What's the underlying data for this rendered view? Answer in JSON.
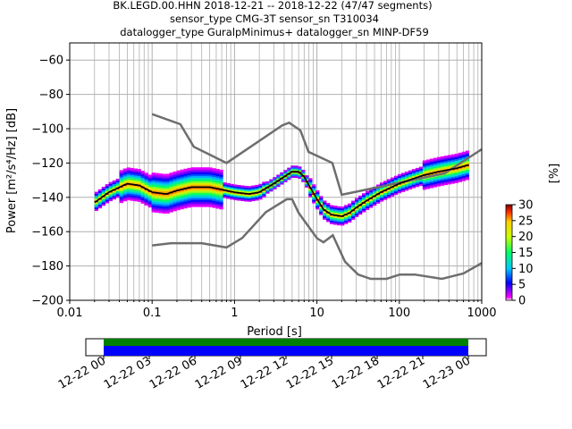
{
  "header": {
    "line1": "BK.LEGD.00.HHN   2018-12-21 -- 2018-12-22  (47/47 segments)",
    "line2": "sensor_type CMG-3T sensor_sn T310034",
    "line3": "datalogger_type GuralpMinimus+ datalogger_sn MINP-DF59"
  },
  "chart_data": {
    "type": "heatmap",
    "xlabel": "Period [s]",
    "ylabel": "Power [m²/s⁴/Hz] [dB]",
    "xscale": "log",
    "xlim": [
      0.01,
      1000
    ],
    "ylim": [
      -200,
      -50
    ],
    "grid": true,
    "x_tick_labels": [
      "0.01",
      "0.1",
      "1",
      "10",
      "100",
      "1000"
    ],
    "x_tick_values": [
      0.01,
      0.1,
      1,
      10,
      100,
      1000
    ],
    "y_tick_labels": [
      "−60",
      "−80",
      "−100",
      "−120",
      "−140",
      "−160",
      "−180",
      "−200"
    ],
    "y_tick_values": [
      -60,
      -80,
      -100,
      -120,
      -140,
      -160,
      -180,
      -200
    ],
    "colorbar": {
      "label": "[%]",
      "ticks": [
        "0",
        "5",
        "10",
        "15",
        "20",
        "25",
        "30"
      ],
      "tick_values": [
        0,
        5,
        10,
        15,
        20,
        25,
        30
      ],
      "range": [
        0,
        30
      ]
    },
    "mode_curve": {
      "period": [
        0.02,
        0.03,
        0.05,
        0.07,
        0.1,
        0.15,
        0.2,
        0.3,
        0.5,
        1,
        1.5,
        2,
        3,
        4,
        5,
        6,
        7,
        8,
        10,
        12,
        15,
        20,
        25,
        30,
        40,
        60,
        100,
        150,
        200,
        300,
        500,
        700
      ],
      "power": [
        -143,
        -137,
        -132,
        -133,
        -137,
        -138,
        -136,
        -134,
        -134,
        -137,
        -138,
        -137,
        -132,
        -128,
        -125,
        -125,
        -128,
        -133,
        -141,
        -147,
        -150,
        -151,
        -149,
        -146,
        -142,
        -137,
        -132,
        -129,
        -127,
        -125,
        -123,
        -121
      ]
    },
    "nlnm": {
      "period": [
        0.1,
        0.17,
        0.4,
        0.8,
        1.24,
        2.4,
        4.3,
        5.0,
        6.0,
        10.0,
        12.0,
        15.6,
        21.9,
        31.6,
        45.0,
        70.0,
        101.0,
        154.0,
        328.0,
        600.0,
        1000.0
      ],
      "power": [
        -168.0,
        -166.7,
        -166.7,
        -169.2,
        -163.7,
        -148.6,
        -141.1,
        -141.1,
        -149.0,
        -163.8,
        -166.2,
        -162.1,
        -177.5,
        -185.0,
        -187.5,
        -187.5,
        -185.0,
        -185.0,
        -187.5,
        -184.4,
        -178.3
      ]
    },
    "nhnm": {
      "period": [
        0.1,
        0.22,
        0.32,
        0.8,
        3.8,
        4.6,
        6.3,
        7.9,
        15.4,
        20.0,
        354.8,
        1000.0
      ],
      "power": [
        -91.5,
        -97.4,
        -110.5,
        -120.0,
        -98.0,
        -96.5,
        -101.0,
        -113.5,
        -120.0,
        -138.5,
        -126.0,
        -112.0
      ]
    },
    "timeline": {
      "tick_labels": [
        "12-22 00",
        "12-22 03",
        "12-22 06",
        "12-22 09",
        "12-22 12",
        "12-22 15",
        "12-22 18",
        "12-22 21",
        "12-23 00"
      ],
      "coverage_hours": [
        0,
        24
      ]
    }
  },
  "colors": {
    "mode": "#000000",
    "noise_models": "#6e6e6e",
    "grid": "#b0b0b0",
    "coverage_green": "#008000",
    "coverage_blue": "#0000ff"
  }
}
